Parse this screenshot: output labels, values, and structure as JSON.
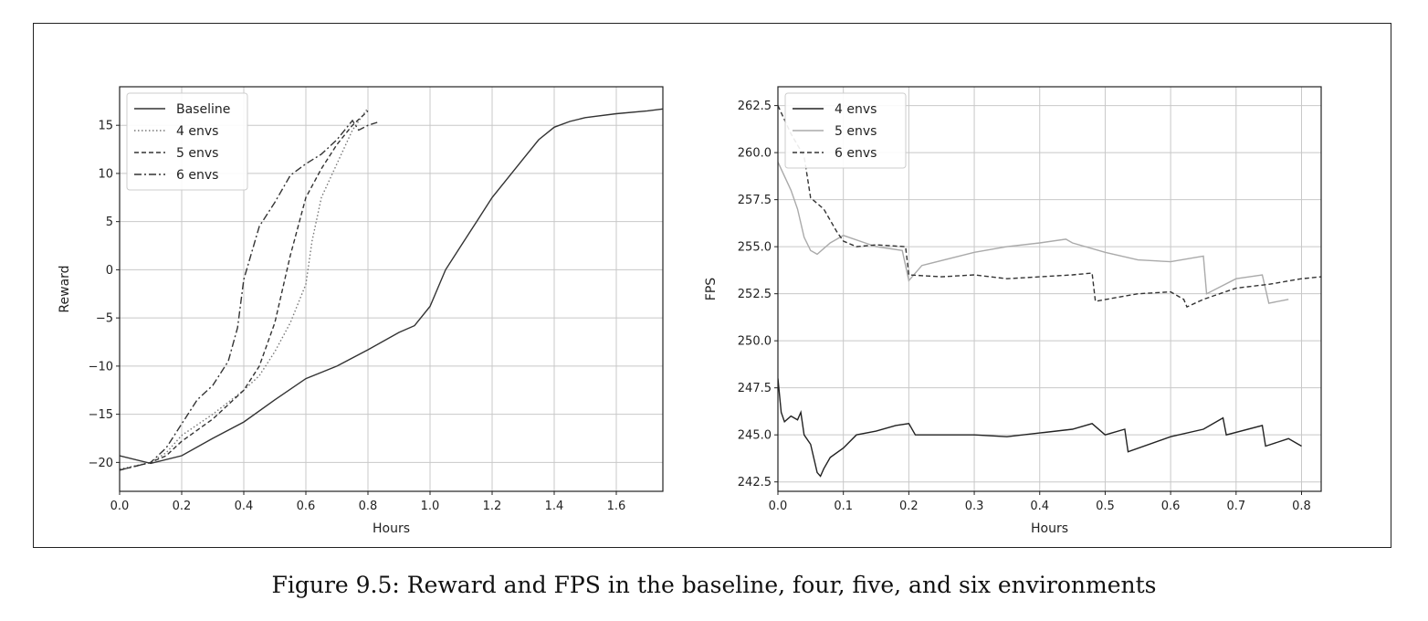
{
  "caption": "Figure 9.5: Reward and FPS in the baseline, four, five, and six environments",
  "chart_data": [
    {
      "type": "line",
      "title": "",
      "xlabel": "Hours",
      "ylabel": "Reward",
      "xlim": [
        0,
        1.75
      ],
      "ylim": [
        -23,
        19
      ],
      "xticks": [
        0.0,
        0.2,
        0.4,
        0.6,
        0.8,
        1.0,
        1.2,
        1.4,
        1.6
      ],
      "xtick_labels": [
        "0.0",
        "0.2",
        "0.4",
        "0.6",
        "0.8",
        "1.0",
        "1.2",
        "1.4",
        "1.6"
      ],
      "yticks": [
        -20,
        -15,
        -10,
        -5,
        0,
        5,
        10,
        15
      ],
      "ytick_labels": [
        "−20",
        "−15",
        "−10",
        "−5",
        "0",
        "5",
        "10",
        "15"
      ],
      "grid": true,
      "legend": "top-left",
      "series": [
        {
          "name": "Baseline",
          "dash": "solid",
          "color": "#333333",
          "x": [
            0,
            0.1,
            0.2,
            0.3,
            0.4,
            0.5,
            0.6,
            0.7,
            0.8,
            0.9,
            0.95,
            1.0,
            1.05,
            1.1,
            1.15,
            1.2,
            1.25,
            1.3,
            1.35,
            1.4,
            1.45,
            1.5,
            1.6,
            1.7,
            1.75
          ],
          "y": [
            -19.3,
            -20.1,
            -19.3,
            -17.5,
            -15.8,
            -13.5,
            -11.3,
            -10.0,
            -8.3,
            -6.5,
            -5.8,
            -3.8,
            0.0,
            2.5,
            5.0,
            7.5,
            9.5,
            11.5,
            13.5,
            14.8,
            15.4,
            15.8,
            16.2,
            16.5,
            16.7
          ]
        },
        {
          "name": "4 envs",
          "dash": "dotted",
          "color": "#777777",
          "x": [
            0,
            0.1,
            0.15,
            0.2,
            0.3,
            0.4,
            0.45,
            0.5,
            0.55,
            0.6,
            0.62,
            0.65,
            0.7,
            0.75,
            0.8
          ],
          "y": [
            -20.7,
            -20.0,
            -19.0,
            -17.2,
            -15.0,
            -12.5,
            -11.0,
            -8.5,
            -5.5,
            -1.5,
            3.0,
            7.5,
            11.0,
            14.5,
            16.8
          ]
        },
        {
          "name": "5 envs",
          "dash": "dashed",
          "color": "#333333",
          "x": [
            0,
            0.1,
            0.15,
            0.2,
            0.3,
            0.4,
            0.45,
            0.5,
            0.55,
            0.6,
            0.65,
            0.7,
            0.75,
            0.8
          ],
          "y": [
            -20.8,
            -20.0,
            -19.3,
            -17.8,
            -15.5,
            -12.5,
            -10.0,
            -5.5,
            1.5,
            7.5,
            10.5,
            13.0,
            15.0,
            16.5
          ]
        },
        {
          "name": "6 envs",
          "dash": "dashdot",
          "color": "#333333",
          "x": [
            0,
            0.1,
            0.15,
            0.2,
            0.25,
            0.3,
            0.35,
            0.38,
            0.4,
            0.45,
            0.5,
            0.55,
            0.6,
            0.65,
            0.7,
            0.75,
            0.77,
            0.8,
            0.83
          ],
          "y": [
            -20.8,
            -20.0,
            -18.5,
            -16.0,
            -13.5,
            -12.0,
            -9.5,
            -6.0,
            -1.0,
            4.5,
            7.0,
            9.8,
            11.0,
            12.0,
            13.5,
            15.5,
            14.5,
            15.0,
            15.3
          ]
        }
      ]
    },
    {
      "type": "line",
      "title": "",
      "xlabel": "Hours",
      "ylabel": "FPS",
      "xlim": [
        0,
        0.83
      ],
      "ylim": [
        242.0,
        263.5
      ],
      "xticks": [
        0.0,
        0.1,
        0.2,
        0.3,
        0.4,
        0.5,
        0.6,
        0.7,
        0.8
      ],
      "xtick_labels": [
        "0.0",
        "0.1",
        "0.2",
        "0.3",
        "0.4",
        "0.5",
        "0.6",
        "0.7",
        "0.8"
      ],
      "yticks": [
        242.5,
        245.0,
        247.5,
        250.0,
        252.5,
        255.0,
        257.5,
        260.0,
        262.5
      ],
      "ytick_labels": [
        "242.5",
        "245.0",
        "247.5",
        "250.0",
        "252.5",
        "255.0",
        "257.5",
        "260.0",
        "262.5"
      ],
      "grid": true,
      "legend": "top-left",
      "series": [
        {
          "name": "4 envs",
          "dash": "solid",
          "color": "#222222",
          "x": [
            0,
            0.005,
            0.01,
            0.02,
            0.03,
            0.035,
            0.04,
            0.05,
            0.06,
            0.065,
            0.07,
            0.08,
            0.1,
            0.12,
            0.15,
            0.18,
            0.2,
            0.21,
            0.3,
            0.35,
            0.4,
            0.45,
            0.48,
            0.5,
            0.53,
            0.535,
            0.6,
            0.65,
            0.68,
            0.685,
            0.74,
            0.745,
            0.78,
            0.8
          ],
          "y": [
            248.0,
            246.2,
            245.7,
            246.0,
            245.8,
            246.2,
            245.0,
            244.5,
            243.0,
            242.8,
            243.2,
            243.8,
            244.3,
            245.0,
            245.2,
            245.5,
            245.6,
            245.0,
            245.0,
            244.9,
            245.1,
            245.3,
            245.6,
            245.0,
            245.3,
            244.1,
            244.9,
            245.3,
            245.9,
            245.0,
            245.5,
            244.4,
            244.8,
            244.4
          ]
        },
        {
          "name": "5 envs",
          "dash": "solid",
          "color": "#aaaaaa",
          "x": [
            0,
            0.02,
            0.03,
            0.04,
            0.05,
            0.06,
            0.08,
            0.1,
            0.15,
            0.19,
            0.2,
            0.22,
            0.3,
            0.35,
            0.4,
            0.44,
            0.45,
            0.5,
            0.55,
            0.6,
            0.65,
            0.655,
            0.7,
            0.74,
            0.75,
            0.78
          ],
          "y": [
            259.5,
            258.0,
            257.0,
            255.5,
            254.8,
            254.6,
            255.2,
            255.6,
            255.0,
            254.8,
            253.2,
            254.0,
            254.7,
            255.0,
            255.2,
            255.4,
            255.2,
            254.7,
            254.3,
            254.2,
            254.5,
            252.5,
            253.3,
            253.5,
            252.0,
            252.2
          ]
        },
        {
          "name": "6 envs",
          "dash": "dashed",
          "color": "#333333",
          "x": [
            0,
            0.02,
            0.04,
            0.05,
            0.07,
            0.09,
            0.1,
            0.12,
            0.15,
            0.195,
            0.2,
            0.25,
            0.3,
            0.35,
            0.4,
            0.45,
            0.48,
            0.485,
            0.55,
            0.6,
            0.62,
            0.625,
            0.65,
            0.7,
            0.75,
            0.8,
            0.83
          ],
          "y": [
            262.5,
            261.0,
            259.8,
            257.6,
            257.0,
            255.8,
            255.3,
            255.0,
            255.1,
            255.0,
            253.5,
            253.4,
            253.5,
            253.3,
            253.4,
            253.5,
            253.6,
            252.1,
            252.5,
            252.6,
            252.2,
            251.8,
            252.2,
            252.8,
            253.0,
            253.3,
            253.4
          ]
        }
      ]
    }
  ]
}
